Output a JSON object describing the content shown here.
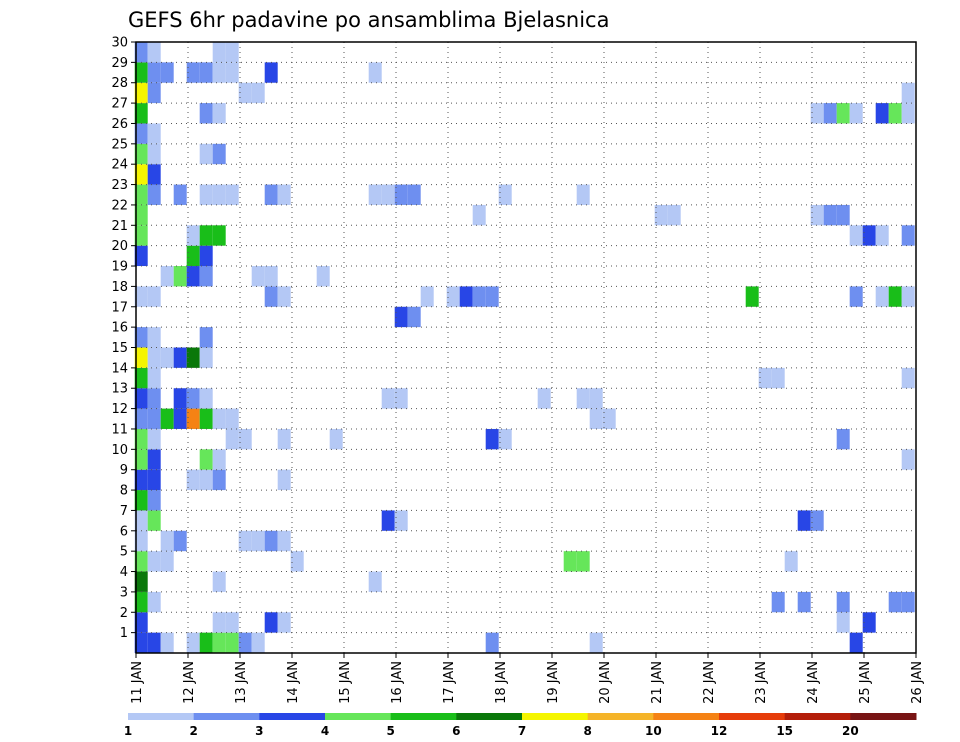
{
  "chart_data": {
    "type": "heatmap",
    "title": "GEFS 6hr padavine po ansamblima Bjelasnica",
    "x_tick_labels": [
      "11 JAN",
      "12 JAN",
      "13 JAN",
      "14 JAN",
      "15 JAN",
      "16 JAN",
      "17 JAN",
      "18 JAN",
      "19 JAN",
      "20 JAN",
      "21 JAN",
      "22 JAN",
      "23 JAN",
      "24 JAN",
      "25 JAN",
      "26 JAN"
    ],
    "y_tick_labels": [
      "1",
      "2",
      "3",
      "4",
      "5",
      "6",
      "7",
      "8",
      "9",
      "10",
      "11",
      "12",
      "13",
      "14",
      "15",
      "16",
      "17",
      "18",
      "19",
      "20",
      "21",
      "22",
      "23",
      "24",
      "25",
      "26",
      "27",
      "28",
      "29",
      "30"
    ],
    "x_range_days": [
      11,
      26
    ],
    "y_range_members": [
      0,
      30
    ],
    "grid": "dotted",
    "colorbar": {
      "position": "bottom",
      "labels": [
        "1",
        "2",
        "3",
        "4",
        "5",
        "6",
        "7",
        "8",
        "10",
        "12",
        "15",
        "20"
      ],
      "colors": [
        "#b4c8f5",
        "#6e8ff0",
        "#2846e6",
        "#66e65a",
        "#19be19",
        "#0a780a",
        "#f5f500",
        "#f5b428",
        "#f58214",
        "#e63c0a",
        "#b41e0a",
        "#781414"
      ]
    },
    "cells": [
      {
        "x": 11.1,
        "y": 0,
        "v": 3
      },
      {
        "x": 11.35,
        "y": 0,
        "v": 3
      },
      {
        "x": 11.6,
        "y": 0,
        "v": 1
      },
      {
        "x": 12.1,
        "y": 0,
        "v": 1
      },
      {
        "x": 12.35,
        "y": 0,
        "v": 5
      },
      {
        "x": 12.6,
        "y": 0,
        "v": 4
      },
      {
        "x": 12.85,
        "y": 0,
        "v": 4
      },
      {
        "x": 13.1,
        "y": 0,
        "v": 2
      },
      {
        "x": 13.35,
        "y": 0,
        "v": 1
      },
      {
        "x": 17.85,
        "y": 0,
        "v": 2
      },
      {
        "x": 19.85,
        "y": 0,
        "v": 1
      },
      {
        "x": 24.85,
        "y": 0,
        "v": 3
      },
      {
        "x": 11.1,
        "y": 1,
        "v": 3
      },
      {
        "x": 12.6,
        "y": 1,
        "v": 1
      },
      {
        "x": 12.85,
        "y": 1,
        "v": 1
      },
      {
        "x": 13.6,
        "y": 1,
        "v": 3
      },
      {
        "x": 13.85,
        "y": 1,
        "v": 1
      },
      {
        "x": 24.6,
        "y": 1,
        "v": 1
      },
      {
        "x": 25.1,
        "y": 1,
        "v": 3
      },
      {
        "x": 11.1,
        "y": 2,
        "v": 5
      },
      {
        "x": 11.35,
        "y": 2,
        "v": 1
      },
      {
        "x": 23.35,
        "y": 2,
        "v": 2
      },
      {
        "x": 23.85,
        "y": 2,
        "v": 2
      },
      {
        "x": 24.6,
        "y": 2,
        "v": 2
      },
      {
        "x": 25.6,
        "y": 2,
        "v": 2
      },
      {
        "x": 25.85,
        "y": 2,
        "v": 2
      },
      {
        "x": 11.1,
        "y": 3,
        "v": 6
      },
      {
        "x": 12.6,
        "y": 3,
        "v": 1
      },
      {
        "x": 15.6,
        "y": 3,
        "v": 1
      },
      {
        "x": 11.1,
        "y": 4,
        "v": 4
      },
      {
        "x": 11.35,
        "y": 4,
        "v": 1
      },
      {
        "x": 11.6,
        "y": 4,
        "v": 1
      },
      {
        "x": 14.1,
        "y": 4,
        "v": 1
      },
      {
        "x": 19.35,
        "y": 4,
        "v": 4
      },
      {
        "x": 19.6,
        "y": 4,
        "v": 4
      },
      {
        "x": 23.6,
        "y": 4,
        "v": 1
      },
      {
        "x": 11.1,
        "y": 5,
        "v": 1
      },
      {
        "x": 11.6,
        "y": 5,
        "v": 1
      },
      {
        "x": 11.85,
        "y": 5,
        "v": 2
      },
      {
        "x": 13.1,
        "y": 5,
        "v": 1
      },
      {
        "x": 13.35,
        "y": 5,
        "v": 1
      },
      {
        "x": 13.6,
        "y": 5,
        "v": 2
      },
      {
        "x": 13.85,
        "y": 5,
        "v": 1
      },
      {
        "x": 11.1,
        "y": 6,
        "v": 1
      },
      {
        "x": 11.35,
        "y": 6,
        "v": 4
      },
      {
        "x": 15.85,
        "y": 6,
        "v": 3
      },
      {
        "x": 16.1,
        "y": 6,
        "v": 1
      },
      {
        "x": 23.85,
        "y": 6,
        "v": 3
      },
      {
        "x": 24.1,
        "y": 6,
        "v": 2
      },
      {
        "x": 11.1,
        "y": 7,
        "v": 5
      },
      {
        "x": 11.35,
        "y": 7,
        "v": 2
      },
      {
        "x": 11.1,
        "y": 8,
        "v": 3
      },
      {
        "x": 11.35,
        "y": 8,
        "v": 3
      },
      {
        "x": 12.1,
        "y": 8,
        "v": 1
      },
      {
        "x": 12.35,
        "y": 8,
        "v": 1
      },
      {
        "x": 12.6,
        "y": 8,
        "v": 2
      },
      {
        "x": 13.85,
        "y": 8,
        "v": 1
      },
      {
        "x": 11.1,
        "y": 9,
        "v": 4
      },
      {
        "x": 11.35,
        "y": 9,
        "v": 3
      },
      {
        "x": 12.35,
        "y": 9,
        "v": 4
      },
      {
        "x": 12.6,
        "y": 9,
        "v": 1
      },
      {
        "x": 25.85,
        "y": 9,
        "v": 1
      },
      {
        "x": 11.1,
        "y": 10,
        "v": 4
      },
      {
        "x": 11.35,
        "y": 10,
        "v": 1
      },
      {
        "x": 12.85,
        "y": 10,
        "v": 1
      },
      {
        "x": 13.1,
        "y": 10,
        "v": 1
      },
      {
        "x": 13.85,
        "y": 10,
        "v": 1
      },
      {
        "x": 14.85,
        "y": 10,
        "v": 1
      },
      {
        "x": 17.85,
        "y": 10,
        "v": 3
      },
      {
        "x": 18.1,
        "y": 10,
        "v": 1
      },
      {
        "x": 24.6,
        "y": 10,
        "v": 2
      },
      {
        "x": 11.1,
        "y": 11,
        "v": 2
      },
      {
        "x": 11.35,
        "y": 11,
        "v": 2
      },
      {
        "x": 11.6,
        "y": 11,
        "v": 5
      },
      {
        "x": 11.85,
        "y": 11,
        "v": 3
      },
      {
        "x": 12.1,
        "y": 11,
        "v": 9
      },
      {
        "x": 12.35,
        "y": 11,
        "v": 5
      },
      {
        "x": 12.6,
        "y": 11,
        "v": 1
      },
      {
        "x": 12.85,
        "y": 11,
        "v": 1
      },
      {
        "x": 19.85,
        "y": 11,
        "v": 1
      },
      {
        "x": 20.1,
        "y": 11,
        "v": 1
      },
      {
        "x": 11.1,
        "y": 12,
        "v": 3
      },
      {
        "x": 11.35,
        "y": 12,
        "v": 2
      },
      {
        "x": 11.85,
        "y": 12,
        "v": 3
      },
      {
        "x": 12.1,
        "y": 12,
        "v": 2
      },
      {
        "x": 12.35,
        "y": 12,
        "v": 1
      },
      {
        "x": 15.85,
        "y": 12,
        "v": 1
      },
      {
        "x": 16.1,
        "y": 12,
        "v": 1
      },
      {
        "x": 18.85,
        "y": 12,
        "v": 1
      },
      {
        "x": 19.6,
        "y": 12,
        "v": 1
      },
      {
        "x": 19.85,
        "y": 12,
        "v": 1
      },
      {
        "x": 11.1,
        "y": 13,
        "v": 5
      },
      {
        "x": 11.35,
        "y": 13,
        "v": 1
      },
      {
        "x": 23.1,
        "y": 13,
        "v": 1
      },
      {
        "x": 23.35,
        "y": 13,
        "v": 1
      },
      {
        "x": 25.85,
        "y": 13,
        "v": 1
      },
      {
        "x": 11.1,
        "y": 14,
        "v": 7
      },
      {
        "x": 11.35,
        "y": 14,
        "v": 1
      },
      {
        "x": 11.6,
        "y": 14,
        "v": 1
      },
      {
        "x": 11.85,
        "y": 14,
        "v": 3
      },
      {
        "x": 12.1,
        "y": 14,
        "v": 6
      },
      {
        "x": 12.35,
        "y": 14,
        "v": 1
      },
      {
        "x": 11.1,
        "y": 15,
        "v": 2
      },
      {
        "x": 11.35,
        "y": 15,
        "v": 1
      },
      {
        "x": 12.35,
        "y": 15,
        "v": 2
      },
      {
        "x": 16.1,
        "y": 16,
        "v": 3
      },
      {
        "x": 16.35,
        "y": 16,
        "v": 2
      },
      {
        "x": 11.1,
        "y": 17,
        "v": 1
      },
      {
        "x": 11.35,
        "y": 17,
        "v": 1
      },
      {
        "x": 13.6,
        "y": 17,
        "v": 2
      },
      {
        "x": 13.85,
        "y": 17,
        "v": 1
      },
      {
        "x": 16.6,
        "y": 17,
        "v": 1
      },
      {
        "x": 17.1,
        "y": 17,
        "v": 1
      },
      {
        "x": 17.35,
        "y": 17,
        "v": 3
      },
      {
        "x": 17.6,
        "y": 17,
        "v": 2
      },
      {
        "x": 17.85,
        "y": 17,
        "v": 2
      },
      {
        "x": 22.85,
        "y": 17,
        "v": 5
      },
      {
        "x": 24.85,
        "y": 17,
        "v": 2
      },
      {
        "x": 25.35,
        "y": 17,
        "v": 1
      },
      {
        "x": 25.6,
        "y": 17,
        "v": 5
      },
      {
        "x": 25.85,
        "y": 17,
        "v": 1
      },
      {
        "x": 11.6,
        "y": 18,
        "v": 1
      },
      {
        "x": 11.85,
        "y": 18,
        "v": 4
      },
      {
        "x": 12.1,
        "y": 18,
        "v": 3
      },
      {
        "x": 12.35,
        "y": 18,
        "v": 2
      },
      {
        "x": 13.35,
        "y": 18,
        "v": 1
      },
      {
        "x": 13.6,
        "y": 18,
        "v": 1
      },
      {
        "x": 14.6,
        "y": 18,
        "v": 1
      },
      {
        "x": 11.1,
        "y": 19,
        "v": 3
      },
      {
        "x": 12.1,
        "y": 19,
        "v": 5
      },
      {
        "x": 12.35,
        "y": 19,
        "v": 3
      },
      {
        "x": 11.1,
        "y": 20,
        "v": 4
      },
      {
        "x": 12.1,
        "y": 20,
        "v": 1
      },
      {
        "x": 12.35,
        "y": 20,
        "v": 5
      },
      {
        "x": 12.6,
        "y": 20,
        "v": 5
      },
      {
        "x": 24.85,
        "y": 20,
        "v": 1
      },
      {
        "x": 25.1,
        "y": 20,
        "v": 3
      },
      {
        "x": 25.35,
        "y": 20,
        "v": 1
      },
      {
        "x": 25.85,
        "y": 20,
        "v": 2
      },
      {
        "x": 11.1,
        "y": 21,
        "v": 4
      },
      {
        "x": 17.6,
        "y": 21,
        "v": 1
      },
      {
        "x": 21.1,
        "y": 21,
        "v": 1
      },
      {
        "x": 21.35,
        "y": 21,
        "v": 1
      },
      {
        "x": 24.1,
        "y": 21,
        "v": 1
      },
      {
        "x": 24.35,
        "y": 21,
        "v": 2
      },
      {
        "x": 24.6,
        "y": 21,
        "v": 2
      },
      {
        "x": 11.1,
        "y": 22,
        "v": 4
      },
      {
        "x": 11.35,
        "y": 22,
        "v": 2
      },
      {
        "x": 11.85,
        "y": 22,
        "v": 2
      },
      {
        "x": 12.35,
        "y": 22,
        "v": 1
      },
      {
        "x": 12.6,
        "y": 22,
        "v": 1
      },
      {
        "x": 12.85,
        "y": 22,
        "v": 1
      },
      {
        "x": 13.6,
        "y": 22,
        "v": 2
      },
      {
        "x": 13.85,
        "y": 22,
        "v": 1
      },
      {
        "x": 15.6,
        "y": 22,
        "v": 1
      },
      {
        "x": 15.85,
        "y": 22,
        "v": 1
      },
      {
        "x": 16.1,
        "y": 22,
        "v": 2
      },
      {
        "x": 16.35,
        "y": 22,
        "v": 2
      },
      {
        "x": 18.1,
        "y": 22,
        "v": 1
      },
      {
        "x": 19.6,
        "y": 22,
        "v": 1
      },
      {
        "x": 11.1,
        "y": 23,
        "v": 7
      },
      {
        "x": 11.35,
        "y": 23,
        "v": 3
      },
      {
        "x": 11.1,
        "y": 24,
        "v": 4
      },
      {
        "x": 11.35,
        "y": 24,
        "v": 1
      },
      {
        "x": 12.35,
        "y": 24,
        "v": 1
      },
      {
        "x": 12.6,
        "y": 24,
        "v": 2
      },
      {
        "x": 11.1,
        "y": 25,
        "v": 2
      },
      {
        "x": 11.35,
        "y": 25,
        "v": 1
      },
      {
        "x": 11.1,
        "y": 26,
        "v": 5
      },
      {
        "x": 12.35,
        "y": 26,
        "v": 2
      },
      {
        "x": 12.6,
        "y": 26,
        "v": 1
      },
      {
        "x": 24.1,
        "y": 26,
        "v": 1
      },
      {
        "x": 24.35,
        "y": 26,
        "v": 2
      },
      {
        "x": 24.6,
        "y": 26,
        "v": 4
      },
      {
        "x": 24.85,
        "y": 26,
        "v": 1
      },
      {
        "x": 25.35,
        "y": 26,
        "v": 3
      },
      {
        "x": 25.6,
        "y": 26,
        "v": 4
      },
      {
        "x": 25.85,
        "y": 26,
        "v": 1
      },
      {
        "x": 11.1,
        "y": 27,
        "v": 7
      },
      {
        "x": 11.35,
        "y": 27,
        "v": 2
      },
      {
        "x": 13.1,
        "y": 27,
        "v": 1
      },
      {
        "x": 13.35,
        "y": 27,
        "v": 1
      },
      {
        "x": 25.85,
        "y": 27,
        "v": 1
      },
      {
        "x": 11.1,
        "y": 28,
        "v": 5
      },
      {
        "x": 11.35,
        "y": 28,
        "v": 2
      },
      {
        "x": 11.6,
        "y": 28,
        "v": 2
      },
      {
        "x": 12.1,
        "y": 28,
        "v": 2
      },
      {
        "x": 12.35,
        "y": 28,
        "v": 2
      },
      {
        "x": 12.6,
        "y": 28,
        "v": 1
      },
      {
        "x": 12.85,
        "y": 28,
        "v": 1
      },
      {
        "x": 13.6,
        "y": 28,
        "v": 3
      },
      {
        "x": 15.6,
        "y": 28,
        "v": 1
      },
      {
        "x": 11.1,
        "y": 29,
        "v": 2
      },
      {
        "x": 11.35,
        "y": 29,
        "v": 1
      },
      {
        "x": 12.6,
        "y": 29,
        "v": 1
      },
      {
        "x": 12.85,
        "y": 29,
        "v": 1
      }
    ]
  }
}
